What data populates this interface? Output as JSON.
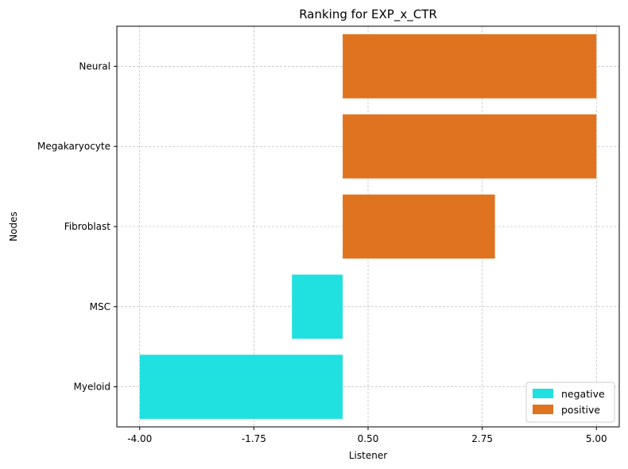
{
  "chart_data": {
    "type": "bar",
    "orientation": "horizontal",
    "title": "Ranking for EXP_x_CTR",
    "xlabel": "Listener",
    "ylabel": "Nodes",
    "categories": [
      "Neural",
      "Megakaryocyte",
      "Fibroblast",
      "MSC",
      "Myeloid"
    ],
    "bars": [
      {
        "category": "Neural",
        "start": 0.0,
        "end": 5.0,
        "group": "positive"
      },
      {
        "category": "Megakaryocyte",
        "start": 0.0,
        "end": 5.0,
        "group": "positive"
      },
      {
        "category": "Fibroblast",
        "start": 0.0,
        "end": 3.0,
        "group": "positive"
      },
      {
        "category": "MSC",
        "start": -1.0,
        "end": 0.0,
        "group": "negative"
      },
      {
        "category": "Myeloid",
        "start": -4.0,
        "end": 0.0,
        "group": "negative"
      }
    ],
    "xticks": [
      -4.0,
      -1.75,
      0.5,
      2.75,
      5.0
    ],
    "xtick_labels": [
      "-4.00",
      "-1.75",
      "0.50",
      "2.75",
      "5.00"
    ],
    "xlim": [
      -4.45,
      5.45
    ],
    "grid": true,
    "legend": {
      "placement": "bottom-right",
      "entries": [
        {
          "label": "negative",
          "color": "#20e0e0"
        },
        {
          "label": "positive",
          "color": "#e07320"
        }
      ]
    },
    "colors": {
      "negative": "#20e0e0",
      "positive": "#e07320"
    }
  }
}
